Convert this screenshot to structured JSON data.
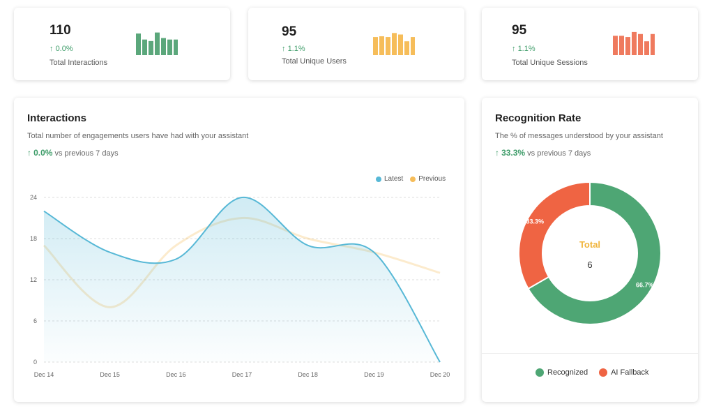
{
  "stats": [
    {
      "value": "110",
      "change": "0.0%",
      "label": "Total Interactions",
      "color": "#5ba77b",
      "bars": [
        0.86,
        0.62,
        0.56,
        0.9,
        0.68,
        0.62,
        0.62
      ]
    },
    {
      "value": "95",
      "change": "1.1%",
      "label": "Total Unique Users",
      "color": "#f6bd5a",
      "bars": [
        0.72,
        0.75,
        0.72,
        0.88,
        0.82,
        0.55,
        0.72
      ]
    },
    {
      "value": "95",
      "change": "1.1%",
      "label": "Total Unique Sessions",
      "color": "#ef7a5e",
      "bars": [
        0.77,
        0.77,
        0.72,
        0.92,
        0.84,
        0.55,
        0.84
      ]
    }
  ],
  "interactions": {
    "title": "Interactions",
    "subtitle": "Total number of engagements users have had with your assistant",
    "change": "0.0%",
    "compare": "vs previous 7 days",
    "legend": {
      "latest": "Latest",
      "previous": "Previous",
      "latest_color": "#57b8d6",
      "previous_color": "#f6bd5a"
    }
  },
  "recognition": {
    "title": "Recognition Rate",
    "subtitle": "The % of messages understood by your assistant",
    "change": "33.3%",
    "compare": "vs previous 7 days",
    "center_label": "Total",
    "center_value": "6",
    "legend": {
      "recognized": "Recognized",
      "fallback": "AI Fallback"
    }
  },
  "chart_data": [
    {
      "type": "line",
      "x": [
        "Dec 14",
        "Dec 15",
        "Dec 16",
        "Dec 17",
        "Dec 18",
        "Dec 19",
        "Dec 20"
      ],
      "series": [
        {
          "name": "Latest",
          "values": [
            22,
            16,
            15,
            24,
            17,
            16,
            0
          ],
          "color": "#57b8d6"
        },
        {
          "name": "Previous",
          "values": [
            17,
            8,
            17,
            21,
            18,
            16,
            13
          ],
          "color": "#f6bd5a"
        }
      ],
      "ylim": [
        0,
        24
      ],
      "yticks": [
        "0",
        "6",
        "12",
        "18",
        "24"
      ],
      "grid": true,
      "legend": "top-right"
    },
    {
      "type": "pie",
      "slices": [
        {
          "name": "Recognized",
          "value": 66.7,
          "label": "66.7%",
          "color": "#4ea674"
        },
        {
          "name": "AI Fallback",
          "value": 33.3,
          "label": "33.3%",
          "color": "#ef6443"
        }
      ],
      "legend": "bottom"
    }
  ]
}
